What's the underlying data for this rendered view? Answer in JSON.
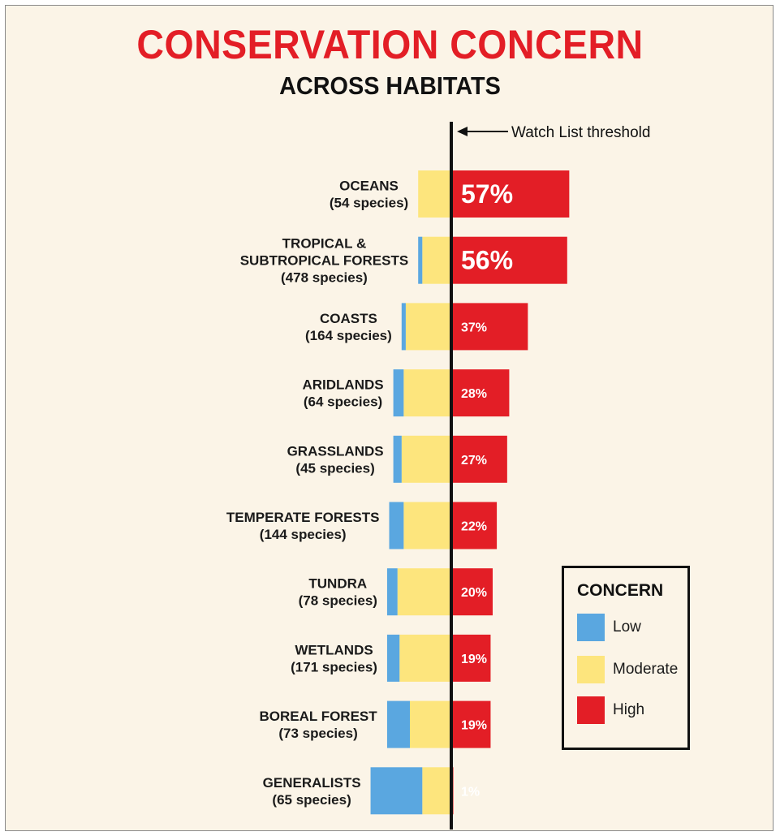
{
  "title": "CONSERVATION CONCERN",
  "subtitle": "ACROSS HABITATS",
  "threshold_label": "Watch List threshold",
  "legend": {
    "title": "CONCERN",
    "items": [
      {
        "label": "Low",
        "color": "#5aa7e0"
      },
      {
        "label": "Moderate",
        "color": "#fde57d"
      },
      {
        "label": "High",
        "color": "#e31e26"
      }
    ]
  },
  "colors": {
    "low": "#5aa7e0",
    "moderate": "#fde57d",
    "high": "#e31e26",
    "title": "#e31e26"
  },
  "chart_data": {
    "type": "bar",
    "orientation": "horizontal",
    "stacked": true,
    "title": "CONSERVATION CONCERN",
    "subtitle": "ACROSS HABITATS",
    "categories": [
      [
        "OCEANS",
        "(54 species)"
      ],
      [
        "TROPICAL &",
        "SUBTROPICAL FORESTS",
        "(478 species)"
      ],
      [
        "COASTS",
        "(164 species)"
      ],
      [
        "ARIDLANDS",
        "(64 species)"
      ],
      [
        "GRASSLANDS",
        "(45 species)"
      ],
      [
        "TEMPERATE FORESTS",
        "(144 species)"
      ],
      [
        "TUNDRA",
        "(78 species)"
      ],
      [
        "WETLANDS",
        "(171 species)"
      ],
      [
        "BOREAL FOREST",
        "(73 species)"
      ],
      [
        "GENERALISTS",
        "(65 species)"
      ]
    ],
    "series": [
      {
        "name": "Low",
        "values": [
          0,
          2,
          2,
          5,
          4,
          7,
          5,
          6,
          11,
          25
        ]
      },
      {
        "name": "Moderate",
        "values": [
          16,
          14,
          22,
          23,
          24,
          23,
          26,
          25,
          20,
          14
        ]
      },
      {
        "name": "High",
        "values": [
          57,
          56,
          37,
          28,
          27,
          22,
          20,
          19,
          19,
          1
        ]
      }
    ],
    "value_labels": [
      "57%",
      "56%",
      "37%",
      "28%",
      "27%",
      "22%",
      "20%",
      "19%",
      "19%",
      "1%"
    ],
    "legend": "bottom-right"
  }
}
